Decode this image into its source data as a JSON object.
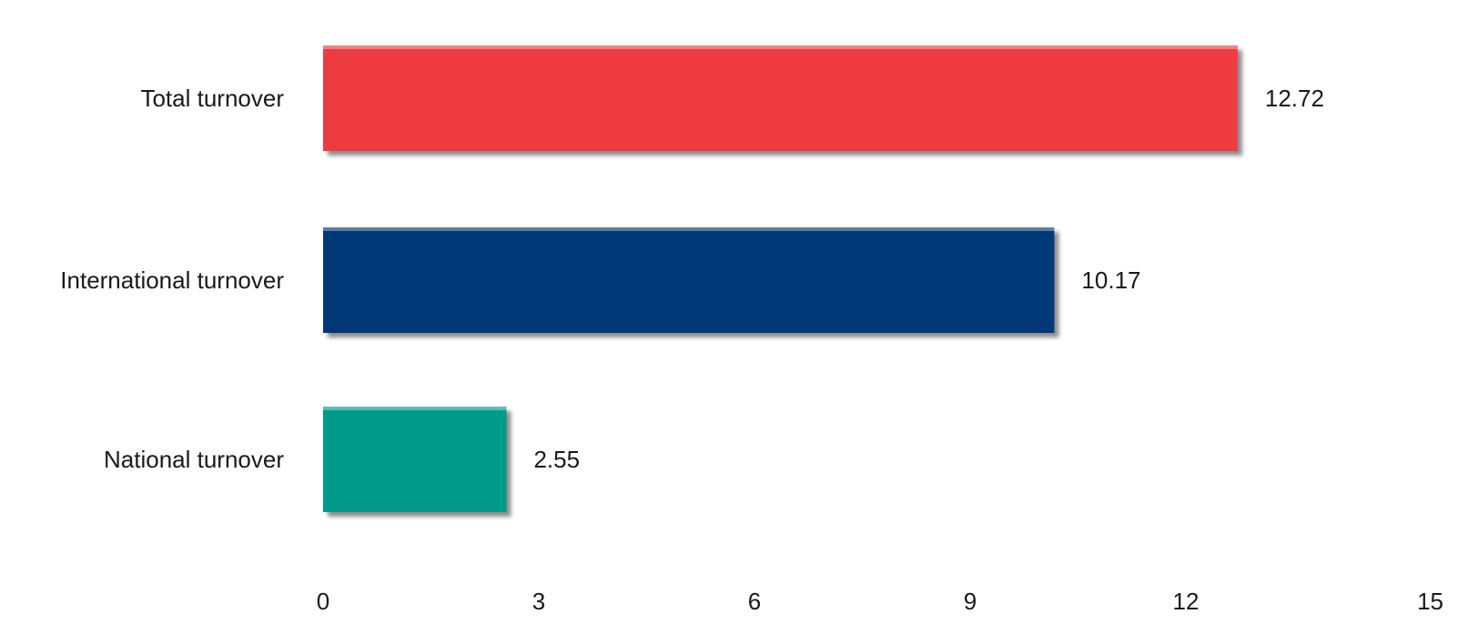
{
  "chart_data": {
    "type": "bar",
    "orientation": "horizontal",
    "categories": [
      "Total turnover",
      "International turnover",
      "National turnover"
    ],
    "values": [
      12.72,
      10.17,
      2.55
    ],
    "value_labels": [
      "12.72",
      "10.17",
      "2.55"
    ],
    "colors": [
      "#ee3b43",
      "#053778",
      "#019a8a"
    ],
    "xlim": [
      0,
      15
    ],
    "xticks": [
      0,
      3,
      6,
      9,
      12,
      15
    ],
    "xtick_labels": [
      "0",
      "3",
      "6",
      "9",
      "12",
      "15"
    ],
    "title": "",
    "xlabel": "",
    "ylabel": "",
    "grid": false,
    "legend": "none"
  }
}
